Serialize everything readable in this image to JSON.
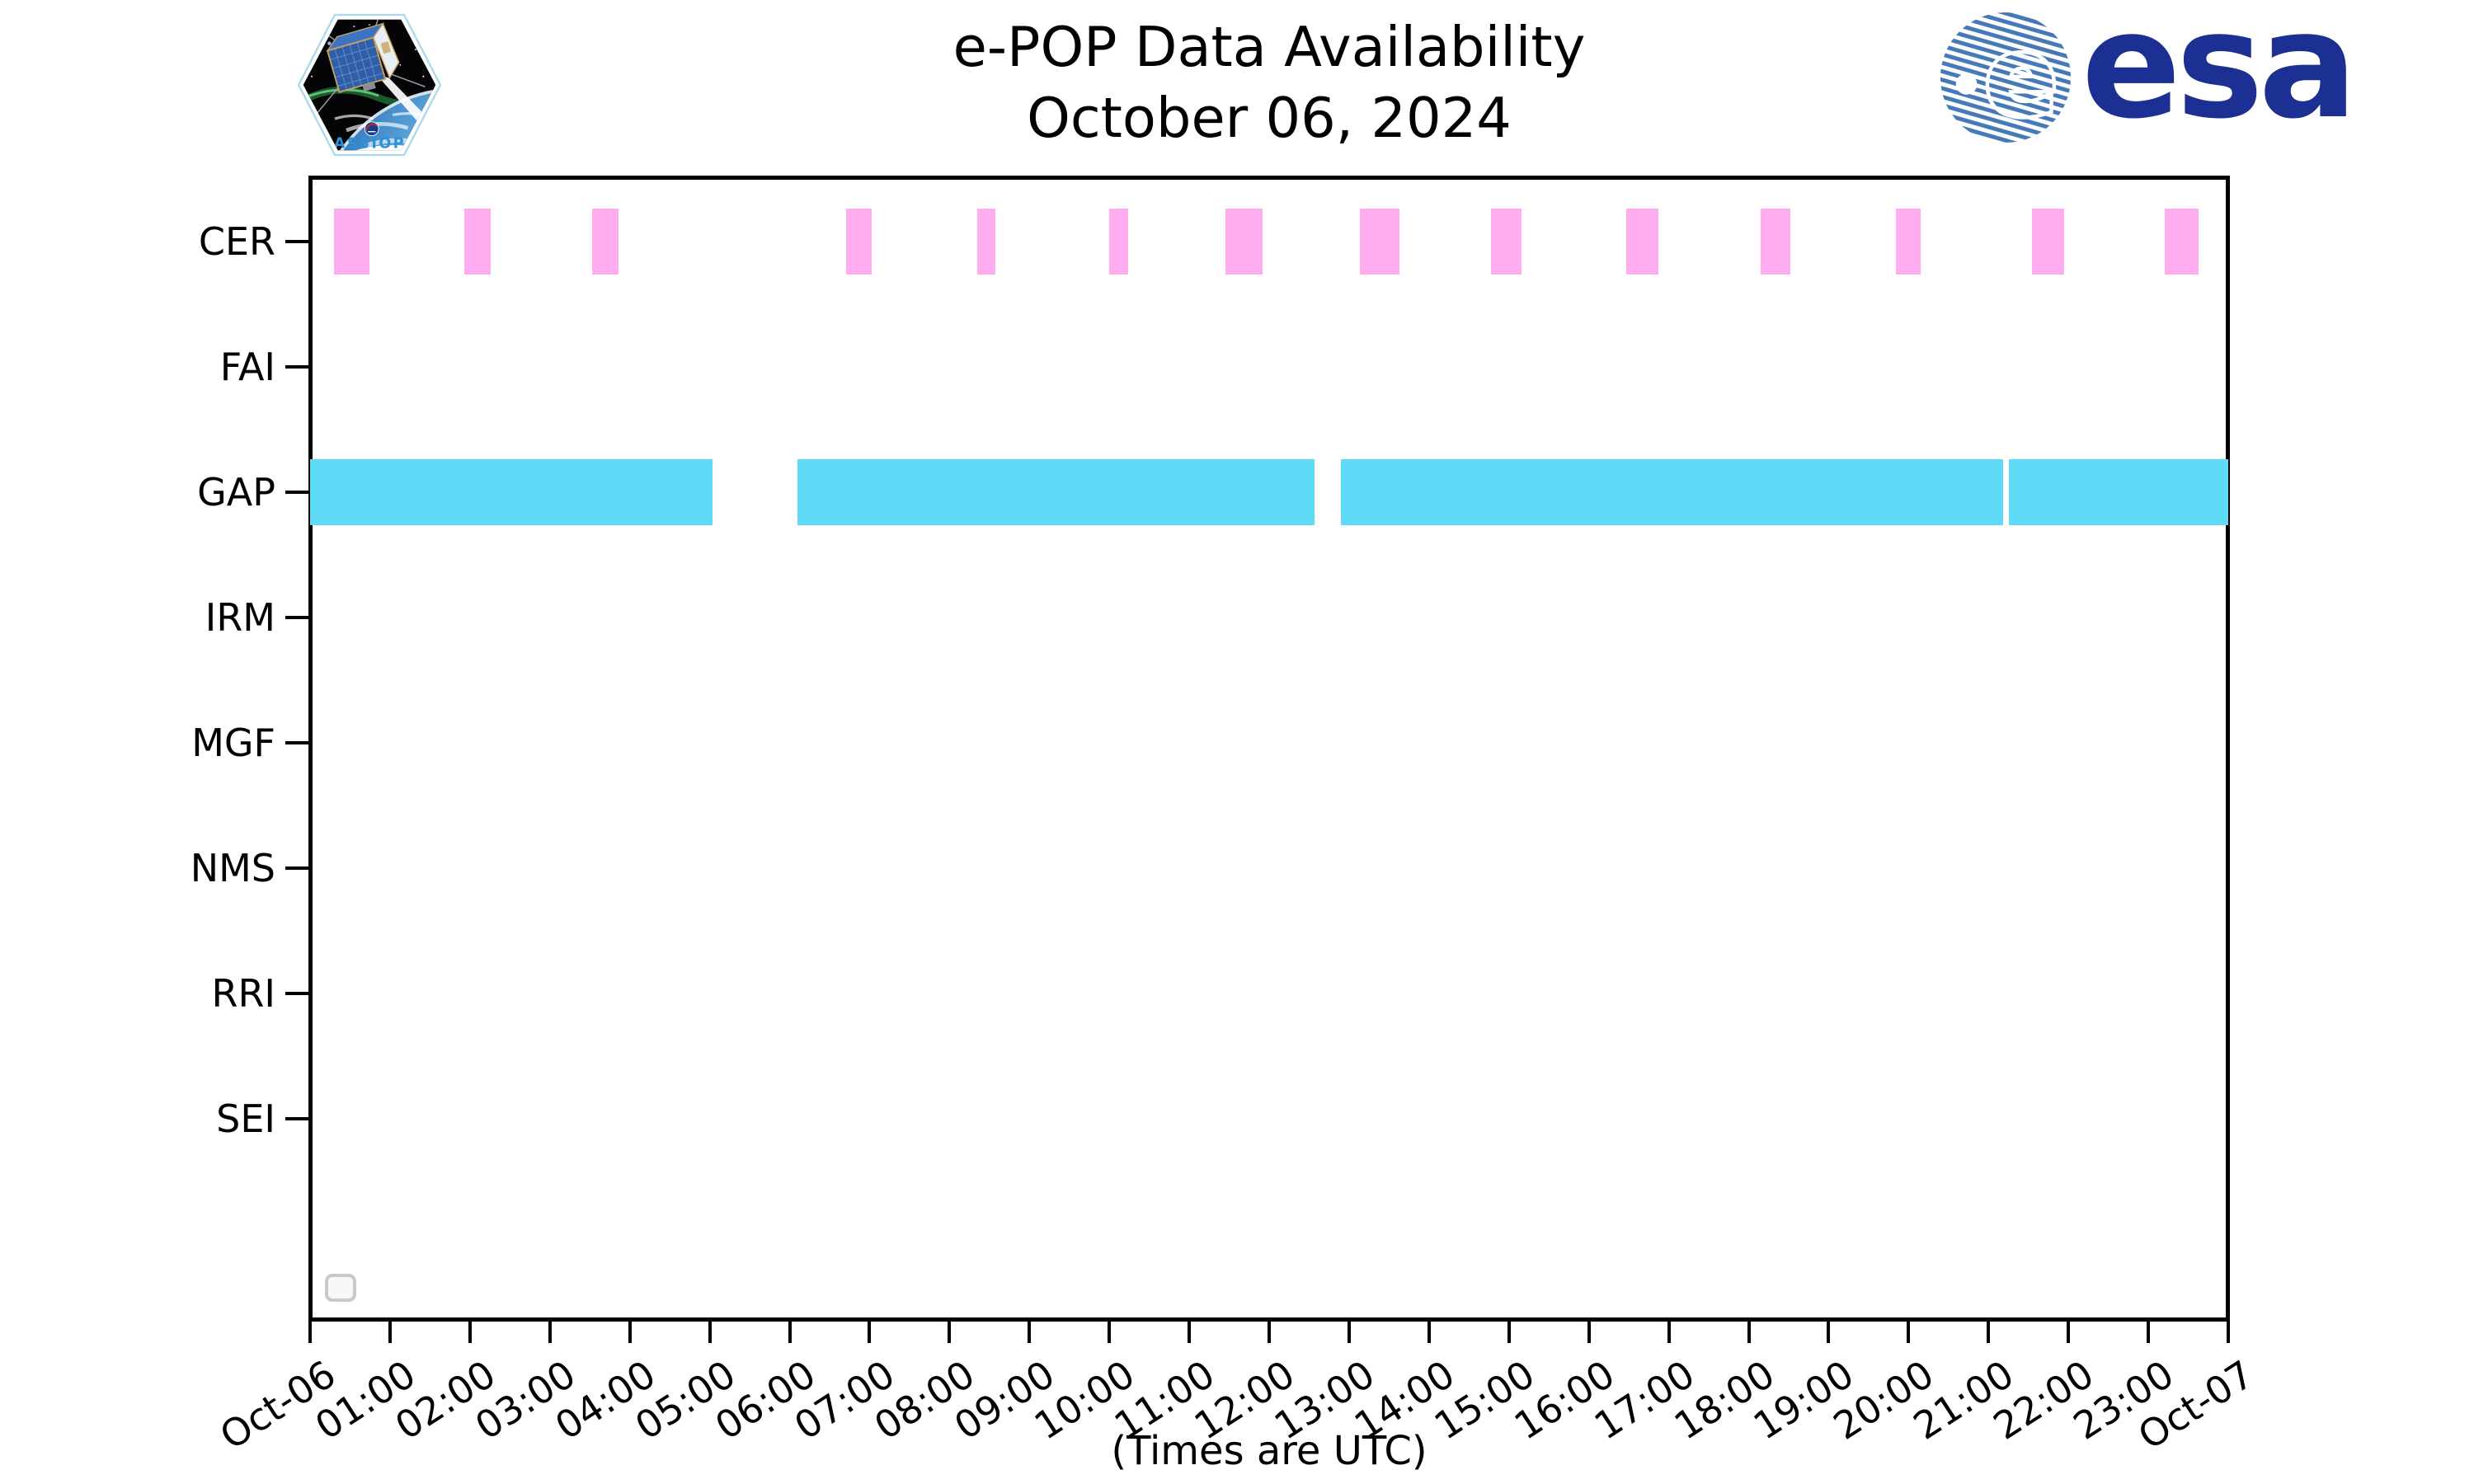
{
  "header": {
    "title": "e-POP Data Availability",
    "subtitle": "October 06, 2024",
    "cassiope_patch_label": "CASSIOPE",
    "esa_wordmark": "esa"
  },
  "footer_note": "(Times are UTC)",
  "chart_data": {
    "type": "bar",
    "variant": "horizontal-interval-availability-timeline",
    "title": "e-POP Data Availability",
    "subtitle": "October 06, 2024",
    "xlabel": "(Times are UTC)",
    "categories": [
      "CER",
      "FAI",
      "GAP",
      "IRM",
      "MGF",
      "NMS",
      "RRI",
      "SEI"
    ],
    "x_axis": {
      "unit": "hours UTC",
      "min_hours": 0,
      "max_hours": 24,
      "tick_interval_hours": 1,
      "tick_labels": [
        "Oct-06",
        "01:00",
        "02:00",
        "03:00",
        "04:00",
        "05:00",
        "06:00",
        "07:00",
        "08:00",
        "09:00",
        "10:00",
        "11:00",
        "12:00",
        "13:00",
        "14:00",
        "15:00",
        "16:00",
        "17:00",
        "18:00",
        "19:00",
        "20:00",
        "21:00",
        "22:00",
        "23:00",
        "Oct-07"
      ]
    },
    "series": [
      {
        "name": "CER",
        "color": "#FFACF1",
        "intervals_hours": [
          [
            0.3,
            0.74
          ],
          [
            1.93,
            2.26
          ],
          [
            3.53,
            3.86
          ],
          [
            6.71,
            7.03
          ],
          [
            8.35,
            8.57
          ],
          [
            10.0,
            10.24
          ],
          [
            11.45,
            11.92
          ],
          [
            13.13,
            13.63
          ],
          [
            14.77,
            15.16
          ],
          [
            16.47,
            16.87
          ],
          [
            18.15,
            18.52
          ],
          [
            19.84,
            20.15
          ],
          [
            21.54,
            21.95
          ],
          [
            23.2,
            23.63
          ]
        ]
      },
      {
        "name": "FAI",
        "intervals_hours": []
      },
      {
        "name": "GAP",
        "color": "#5FDBF7",
        "intervals_hours": [
          [
            0.0,
            5.03
          ],
          [
            6.1,
            12.57
          ],
          [
            12.9,
            21.18
          ],
          [
            21.25,
            24.0
          ]
        ]
      },
      {
        "name": "IRM",
        "intervals_hours": []
      },
      {
        "name": "MGF",
        "intervals_hours": []
      },
      {
        "name": "NMS",
        "intervals_hours": []
      },
      {
        "name": "RRI",
        "intervals_hours": []
      },
      {
        "name": "SEI",
        "intervals_hours": []
      }
    ],
    "legend": {
      "visible": true,
      "entries": []
    },
    "grid": false,
    "axis_color": "#000000"
  },
  "colors": {
    "bar_pink": "#FFACF1",
    "bar_cyan": "#5FDBF7",
    "axis": "#000000",
    "esa_navy": "#1C2F92",
    "esa_stripe_blue": "#4679BA",
    "cassiope_blue": "#2B93D6",
    "legend_border": "#C9C9C9"
  }
}
